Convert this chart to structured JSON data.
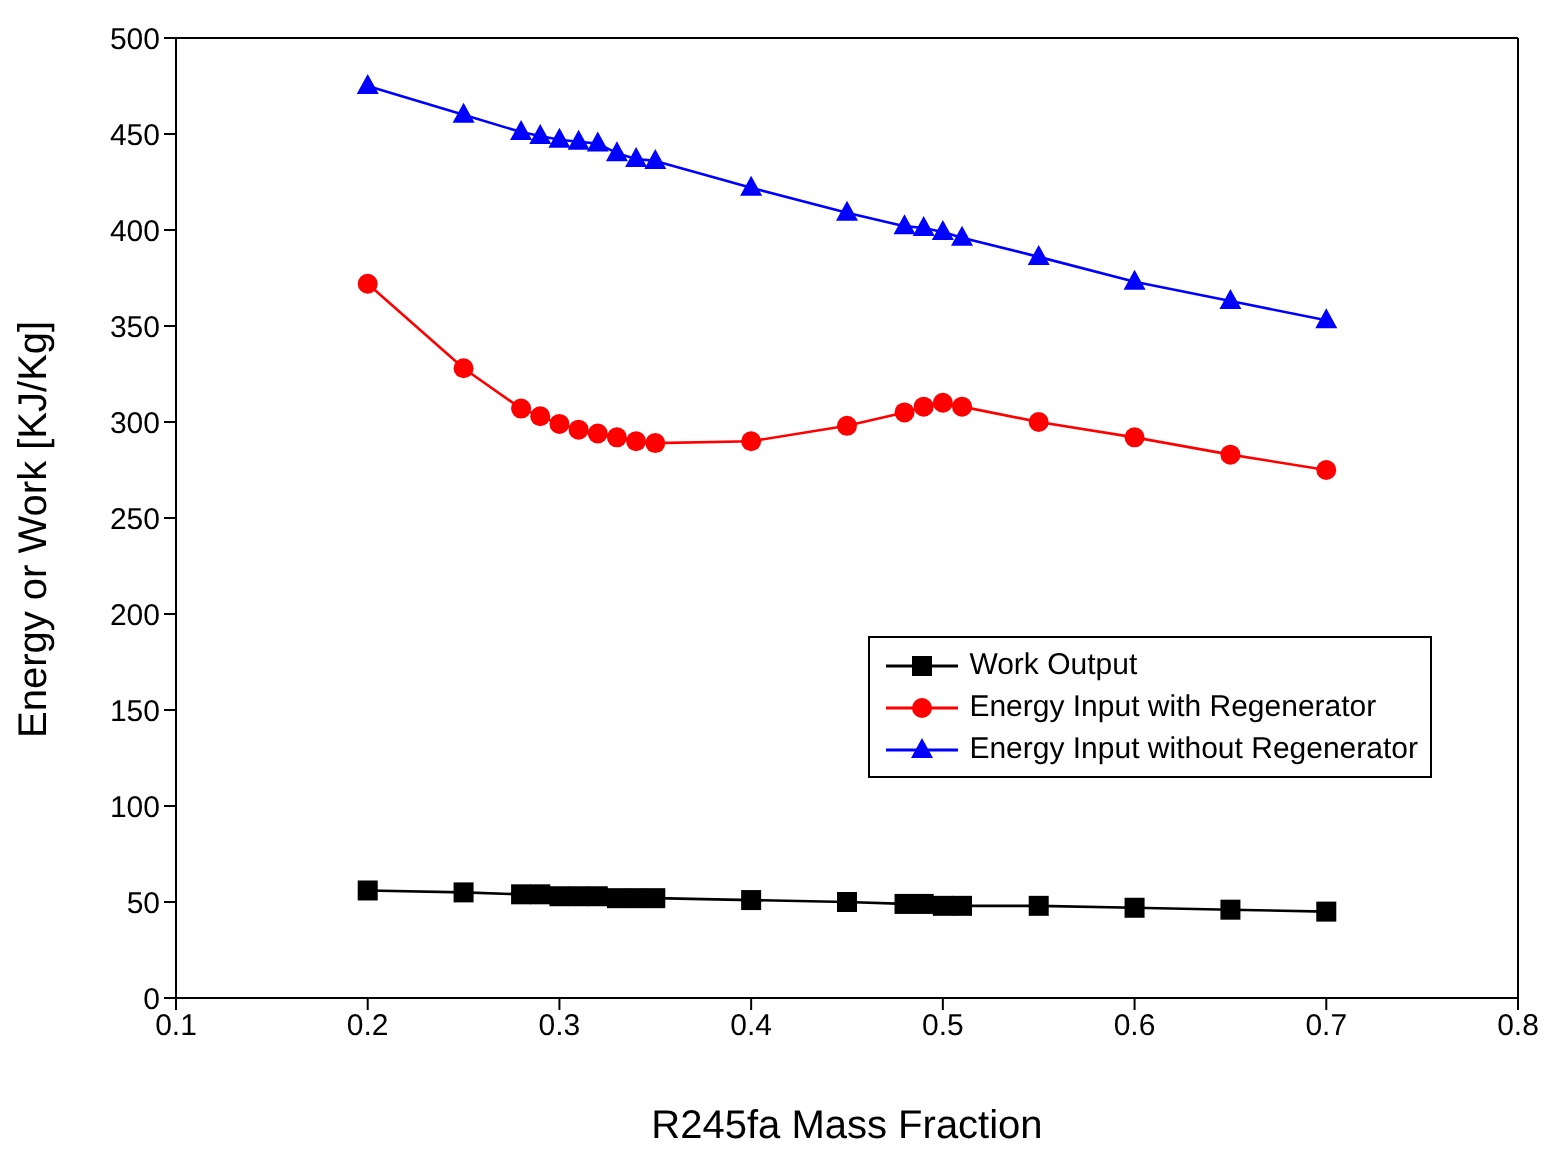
{
  "chart_data": {
    "type": "line",
    "xlabel": "R245fa Mass Fraction",
    "ylabel": "Energy or Work [KJ/Kg]",
    "x": [
      0.2,
      0.25,
      0.28,
      0.29,
      0.3,
      0.31,
      0.32,
      0.33,
      0.34,
      0.35,
      0.4,
      0.45,
      0.48,
      0.49,
      0.5,
      0.51,
      0.55,
      0.6,
      0.65,
      0.7
    ],
    "series": [
      {
        "name": "Work Output",
        "color": "#000000",
        "marker": "square",
        "values": [
          56,
          55,
          54,
          54,
          53,
          53,
          53,
          52,
          52,
          52,
          51,
          50,
          49,
          49,
          48,
          48,
          48,
          47,
          46,
          45
        ]
      },
      {
        "name": "Energy Input with Regenerator",
        "color": "#ff0000",
        "marker": "circle",
        "values": [
          372,
          328,
          307,
          303,
          299,
          296,
          294,
          292,
          290,
          289,
          290,
          298,
          305,
          308,
          310,
          308,
          300,
          292,
          283,
          275
        ]
      },
      {
        "name": "Energy Input without Regenerator",
        "color": "#0000ff",
        "marker": "triangle",
        "values": [
          475,
          460,
          451,
          449,
          447,
          446,
          445,
          440,
          437,
          436,
          422,
          409,
          402,
          401,
          399,
          396,
          386,
          373,
          363,
          353
        ]
      }
    ],
    "xlim": [
      0.1,
      0.8
    ],
    "xticks": [
      0.1,
      0.2,
      0.3,
      0.4,
      0.5,
      0.6,
      0.7,
      0.8
    ],
    "ylim": [
      0,
      500
    ],
    "yticks": [
      0,
      50,
      100,
      150,
      200,
      250,
      300,
      350,
      400,
      450,
      500
    ],
    "grid": false,
    "legend": "right",
    "line_style": "solid"
  }
}
